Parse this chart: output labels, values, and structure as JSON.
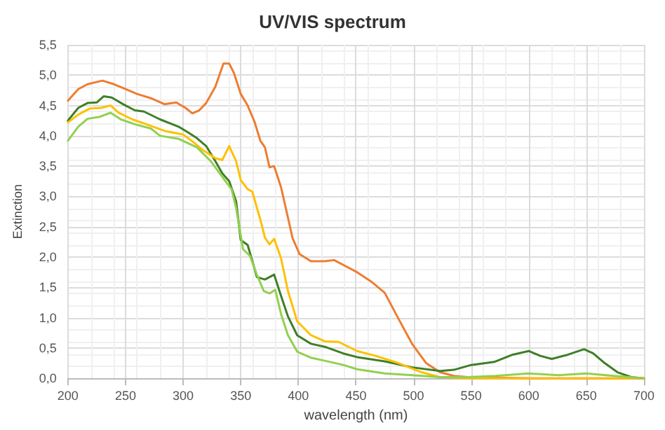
{
  "chart_data": {
    "type": "line",
    "title": "UV/VIS spectrum",
    "xlabel": "wavelength (nm)",
    "ylabel": "Extinction",
    "xlim": [
      200,
      700
    ],
    "xticks": [
      200,
      250,
      300,
      350,
      400,
      450,
      500,
      550,
      600,
      650,
      700
    ],
    "ylim": [
      0,
      5.5
    ],
    "yticks": [
      {
        "value": 0,
        "label": "0,0"
      },
      {
        "value": 0.5,
        "label": "0,5"
      },
      {
        "value": 1,
        "label": "1,0"
      },
      {
        "value": 1.5,
        "label": "1,5"
      },
      {
        "value": 2,
        "label": "2,0"
      },
      {
        "value": 2.5,
        "label": "2,5"
      },
      {
        "value": 3,
        "label": "3,0"
      },
      {
        "value": 3.5,
        "label": "3,5"
      },
      {
        "value": 4,
        "label": "4,0"
      },
      {
        "value": 4.5,
        "label": "4,5"
      },
      {
        "value": 5,
        "label": "5,0"
      },
      {
        "value": 5.5,
        "label": "5,5"
      }
    ],
    "grid": true,
    "marker": "none",
    "line_style": "solid",
    "series": [
      {
        "color": "#ed7d31",
        "x": [
          200,
          209,
          217,
          230,
          240,
          250,
          260,
          272,
          284,
          294,
          302,
          308,
          314,
          320,
          328,
          335,
          340,
          344,
          350,
          356,
          362,
          367,
          371,
          375,
          379,
          385,
          391,
          395,
          401,
          411,
          423,
          431,
          439,
          451,
          463,
          475,
          487,
          499,
          511,
          523,
          535,
          547,
          571,
          607,
          700
        ],
        "values": [
          4.58,
          4.77,
          4.85,
          4.91,
          4.85,
          4.77,
          4.69,
          4.62,
          4.52,
          4.55,
          4.46,
          4.37,
          4.42,
          4.54,
          4.81,
          5.19,
          5.19,
          5.04,
          4.69,
          4.5,
          4.23,
          3.92,
          3.81,
          3.48,
          3.5,
          3.15,
          2.65,
          2.31,
          2.05,
          1.93,
          1.93,
          1.95,
          1.87,
          1.75,
          1.6,
          1.41,
          0.98,
          0.56,
          0.25,
          0.1,
          0.04,
          0.02,
          0.01,
          0,
          0
        ]
      },
      {
        "color": "#3f7f26",
        "x": [
          200,
          209,
          217,
          225,
          231,
          238,
          248,
          258,
          266,
          280,
          296,
          304,
          312,
          320,
          328,
          334,
          340,
          346,
          350,
          356,
          360,
          364,
          371,
          379,
          385,
          391,
          399,
          411,
          423,
          439,
          451,
          475,
          499,
          523,
          535,
          550,
          570,
          586,
          600,
          610,
          620,
          634,
          648,
          656,
          666,
          677,
          689,
          700
        ],
        "values": [
          4.25,
          4.46,
          4.54,
          4.55,
          4.65,
          4.63,
          4.52,
          4.42,
          4.4,
          4.27,
          4.15,
          4.06,
          3.96,
          3.83,
          3.58,
          3.38,
          3.25,
          2.92,
          2.28,
          2.2,
          1.94,
          1.67,
          1.63,
          1.71,
          1.36,
          1.02,
          0.71,
          0.57,
          0.52,
          0.41,
          0.35,
          0.28,
          0.18,
          0.12,
          0.14,
          0.22,
          0.27,
          0.39,
          0.45,
          0.37,
          0.32,
          0.39,
          0.48,
          0.41,
          0.25,
          0.1,
          0.02,
          0
        ]
      },
      {
        "color": "#ffc000",
        "x": [
          200,
          209,
          219,
          229,
          237,
          244,
          256,
          268,
          284,
          300,
          308,
          316,
          328,
          334,
          340,
          346,
          350,
          356,
          360,
          367,
          371,
          375,
          379,
          385,
          391,
          399,
          411,
          423,
          435,
          451,
          467,
          487,
          507,
          523,
          547,
          700
        ],
        "values": [
          4.22,
          4.35,
          4.45,
          4.46,
          4.5,
          4.38,
          4.27,
          4.19,
          4.08,
          4.02,
          3.91,
          3.78,
          3.63,
          3.6,
          3.83,
          3.58,
          3.27,
          3.12,
          3.08,
          2.62,
          2.32,
          2.21,
          2.3,
          1.98,
          1.44,
          0.94,
          0.71,
          0.61,
          0.6,
          0.45,
          0.37,
          0.25,
          0.1,
          0.02,
          0,
          0
        ]
      },
      {
        "color": "#92d050",
        "x": [
          200,
          209,
          217,
          227,
          237,
          246,
          258,
          272,
          280,
          296,
          312,
          324,
          336,
          342,
          346,
          352,
          358,
          364,
          370,
          375,
          380,
          385,
          391,
          399,
          411,
          423,
          439,
          451,
          475,
          499,
          523,
          547,
          571,
          600,
          626,
          650,
          674,
          700
        ],
        "values": [
          3.92,
          4.15,
          4.28,
          4.31,
          4.38,
          4.27,
          4.19,
          4.12,
          4.0,
          3.95,
          3.81,
          3.58,
          3.27,
          3.12,
          2.81,
          2.13,
          2.02,
          1.71,
          1.44,
          1.4,
          1.46,
          1.06,
          0.71,
          0.44,
          0.34,
          0.29,
          0.22,
          0.15,
          0.08,
          0.05,
          0.02,
          0.02,
          0.04,
          0.08,
          0.05,
          0.08,
          0.04,
          0
        ]
      }
    ]
  }
}
